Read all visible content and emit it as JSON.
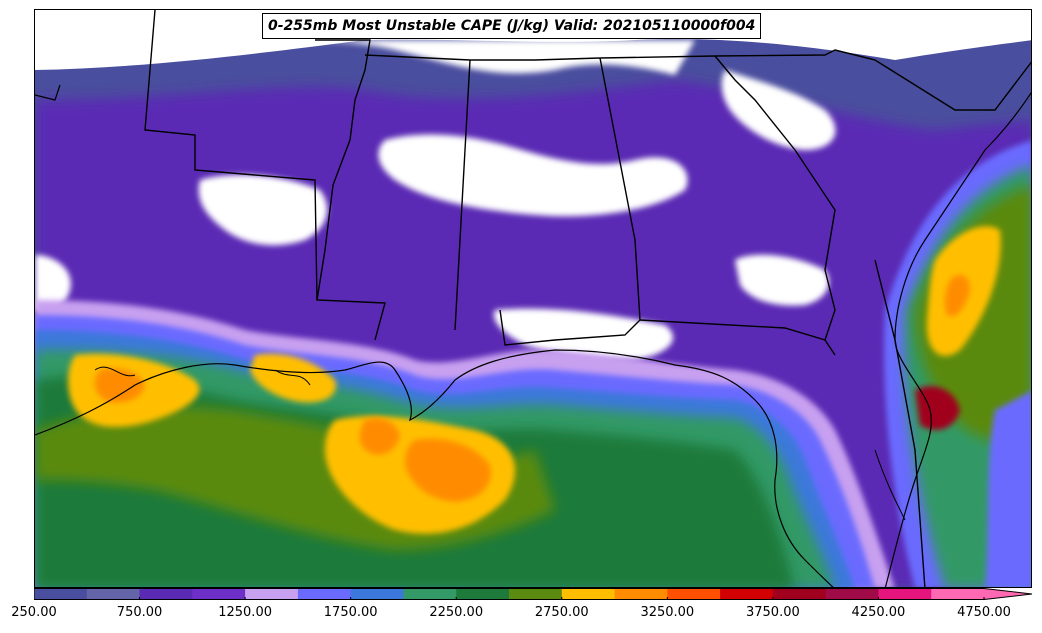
{
  "title": "0-255mb Most Unstable CAPE (J/kg) Valid: 202105110000f004",
  "colorbar": {
    "tick_labels": [
      "250.00",
      "750.00",
      "1250.00",
      "1750.00",
      "2250.00",
      "2750.00",
      "3250.00",
      "3750.00",
      "4250.00",
      "4750.00"
    ],
    "levels": [
      250,
      500,
      750,
      1000,
      1250,
      1500,
      1750,
      2000,
      2250,
      2500,
      2750,
      3000,
      3250,
      3500,
      3750,
      4000,
      4250,
      4500,
      4750
    ],
    "colors": [
      "#4a4e9e",
      "#6464a8",
      "#5a2ab4",
      "#6e2ec8",
      "#c8a0f0",
      "#6a6aff",
      "#3c78dc",
      "#339966",
      "#1e7a3a",
      "#5a8a10",
      "#ffbf00",
      "#ff8c00",
      "#ff5000",
      "#d20000",
      "#a0001e",
      "#a00a46",
      "#e6147d",
      "#ff69b4"
    ],
    "extend": "max"
  }
}
